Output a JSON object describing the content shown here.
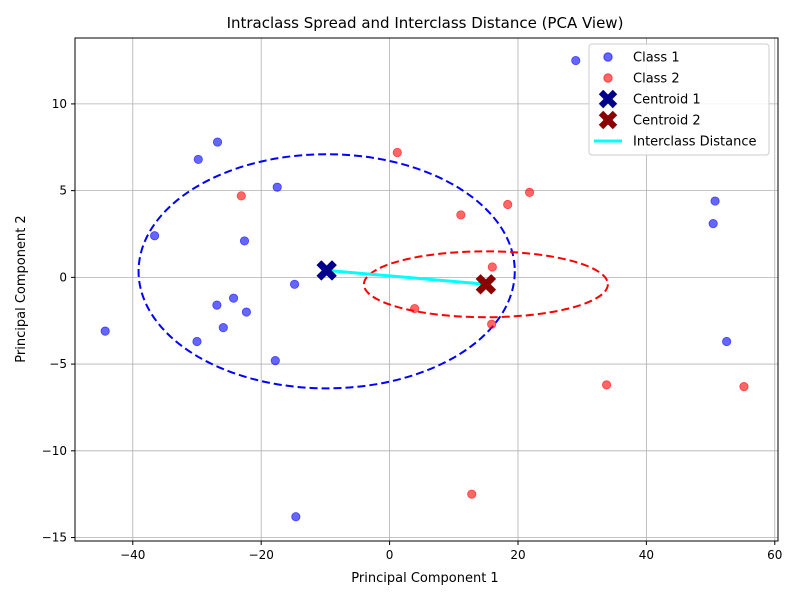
{
  "chart_data": {
    "type": "scatter",
    "title": "Intraclass Spread and Interclass Distance (PCA View)",
    "xlabel": "Principal Component 1",
    "ylabel": "Principal Component 2",
    "xlim": [
      -49,
      60.5
    ],
    "ylim": [
      -15.2,
      13.8
    ],
    "xticks": [
      -40,
      -20,
      0,
      20,
      40,
      60
    ],
    "yticks": [
      -15,
      -10,
      -5,
      0,
      5,
      10
    ],
    "xtick_labels": [
      "−40",
      "−20",
      "0",
      "20",
      "40",
      "60"
    ],
    "ytick_labels": [
      "−15",
      "−10",
      "−5",
      "0",
      "5",
      "10"
    ],
    "grid": true,
    "legend_position": "top-right",
    "series": [
      {
        "name": "Class 1",
        "color": "#0000ff",
        "points": [
          [
            29,
            12.5
          ],
          [
            -26.8,
            7.8
          ],
          [
            -29.8,
            6.8
          ],
          [
            -17.5,
            5.2
          ],
          [
            -36.6,
            2.4
          ],
          [
            -22.6,
            2.1
          ],
          [
            -14.8,
            -0.4
          ],
          [
            -24.3,
            -1.2
          ],
          [
            -26.9,
            -1.6
          ],
          [
            -22.3,
            -2.0
          ],
          [
            -25.9,
            -2.9
          ],
          [
            -30,
            -3.7
          ],
          [
            -44.3,
            -3.1
          ],
          [
            -17.8,
            -4.8
          ],
          [
            -14.6,
            -13.8
          ],
          [
            50.7,
            4.4
          ],
          [
            50.4,
            3.1
          ],
          [
            52.5,
            -3.7
          ]
        ]
      },
      {
        "name": "Class 2",
        "color": "#ff0000",
        "points": [
          [
            1.2,
            7.2
          ],
          [
            -23.1,
            4.7
          ],
          [
            21.8,
            4.9
          ],
          [
            18.4,
            4.2
          ],
          [
            11.1,
            3.6
          ],
          [
            16.0,
            0.6
          ],
          [
            3.9,
            -1.8
          ],
          [
            15.9,
            -2.7
          ],
          [
            33.8,
            -6.2
          ],
          [
            55.2,
            -6.3
          ],
          [
            12.8,
            -12.5
          ]
        ]
      }
    ],
    "centroids": [
      {
        "name": "Centroid 1",
        "color": "#00008b",
        "x": -9.8,
        "y": 0.4
      },
      {
        "name": "Centroid 2",
        "color": "#8b0000",
        "x": 15.0,
        "y": -0.4
      }
    ],
    "ellipses": [
      {
        "color": "#0000ff",
        "cx": -9.8,
        "cy": 0.35,
        "rx": 29.3,
        "ry": 6.75
      },
      {
        "color": "#ff0000",
        "cx": 15.0,
        "cy": -0.4,
        "rx": 19.0,
        "ry": 1.9
      }
    ],
    "interclass_line": {
      "name": "Interclass Distance",
      "color": "#00ffff",
      "from": [
        -9.8,
        0.4
      ],
      "to": [
        15.0,
        -0.4
      ]
    },
    "legend": [
      "Class 1",
      "Class 2",
      "Centroid 1",
      "Centroid 2",
      "Interclass Distance"
    ]
  }
}
